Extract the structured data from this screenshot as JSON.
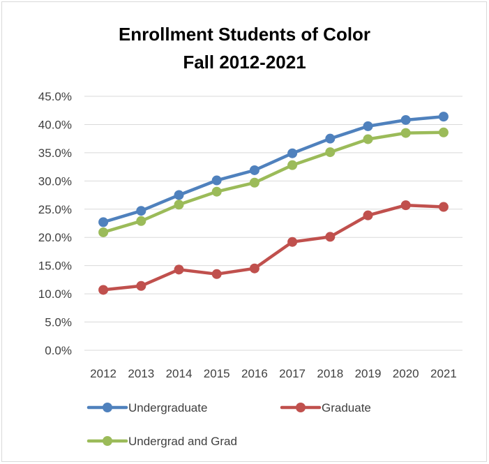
{
  "chart_data": {
    "type": "line",
    "title": "Enrollment Students of Color",
    "subtitle": "Fall 2012-2021",
    "categories": [
      "2012",
      "2013",
      "2014",
      "2015",
      "2016",
      "2017",
      "2018",
      "2019",
      "2020",
      "2021"
    ],
    "series": [
      {
        "name": "Undergraduate",
        "color": "#4f81bd",
        "values": [
          0.227,
          0.247,
          0.275,
          0.301,
          0.319,
          0.349,
          0.375,
          0.397,
          0.408,
          0.414
        ]
      },
      {
        "name": "Graduate",
        "color": "#c0504d",
        "values": [
          0.107,
          0.114,
          0.143,
          0.135,
          0.145,
          0.192,
          0.201,
          0.239,
          0.257,
          0.254
        ]
      },
      {
        "name": "Undergrad and Grad",
        "color": "#9bbb59",
        "values": [
          0.209,
          0.229,
          0.258,
          0.281,
          0.297,
          0.328,
          0.351,
          0.374,
          0.385,
          0.386
        ]
      }
    ],
    "ylim": [
      0,
      0.45
    ],
    "yticks": [
      0,
      0.05,
      0.1,
      0.15,
      0.2,
      0.25,
      0.3,
      0.35,
      0.4,
      0.45
    ],
    "yticklabels": [
      "0.0%",
      "5.0%",
      "10.0%",
      "15.0%",
      "20.0%",
      "25.0%",
      "30.0%",
      "35.0%",
      "40.0%",
      "45.0%"
    ],
    "xlabel": "",
    "ylabel": "",
    "grid": true,
    "legend": "bottom",
    "gridline_color": "#d9d9d9"
  }
}
